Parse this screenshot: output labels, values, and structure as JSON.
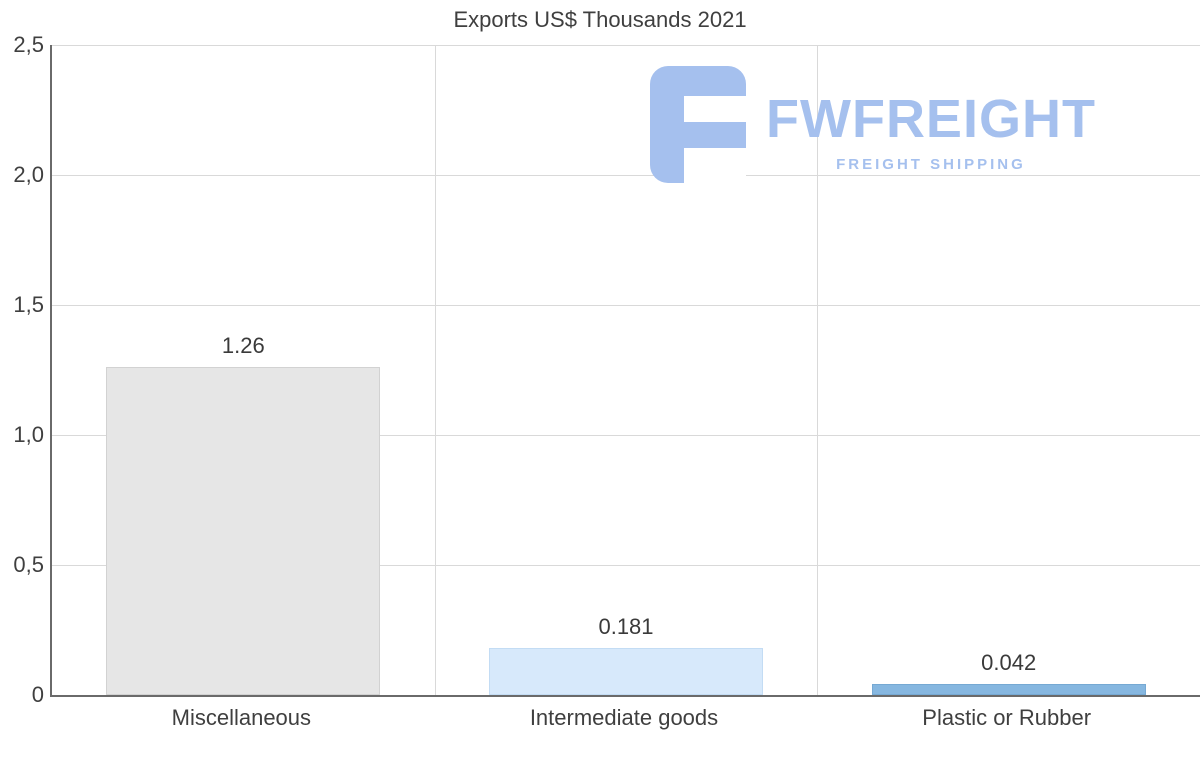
{
  "chart_data": {
    "type": "bar",
    "title": "Exports US$ Thousands 2021",
    "categories": [
      "Miscellaneous",
      "Intermediate goods",
      "Plastic or Rubber"
    ],
    "values": [
      1.26,
      0.181,
      0.042
    ],
    "value_labels": [
      "1.26",
      "0.181",
      "0.042"
    ],
    "bar_colors": [
      "#e6e6e6",
      "#d7e9fb",
      "#86b7e0"
    ],
    "bar_border_colors": [
      "#d2d2d2",
      "#c3dcf4",
      "#76a9d3"
    ],
    "xlabel": "",
    "ylabel": "",
    "ylim": [
      0,
      2.5
    ],
    "yticks": [
      0,
      0.5,
      1.0,
      1.5,
      2.0,
      2.5
    ],
    "ytick_labels": [
      "0",
      "0,5",
      "1,0",
      "1,5",
      "2,0",
      "2,5"
    ],
    "grid": "horizontal gridlines plus vertical category separators",
    "legend": "none",
    "background": "#ffffff"
  },
  "watermark": {
    "brand": "FWFREIGHT",
    "tagline": "FREIGHT SHIPPING",
    "color": "#a5c0ee"
  }
}
